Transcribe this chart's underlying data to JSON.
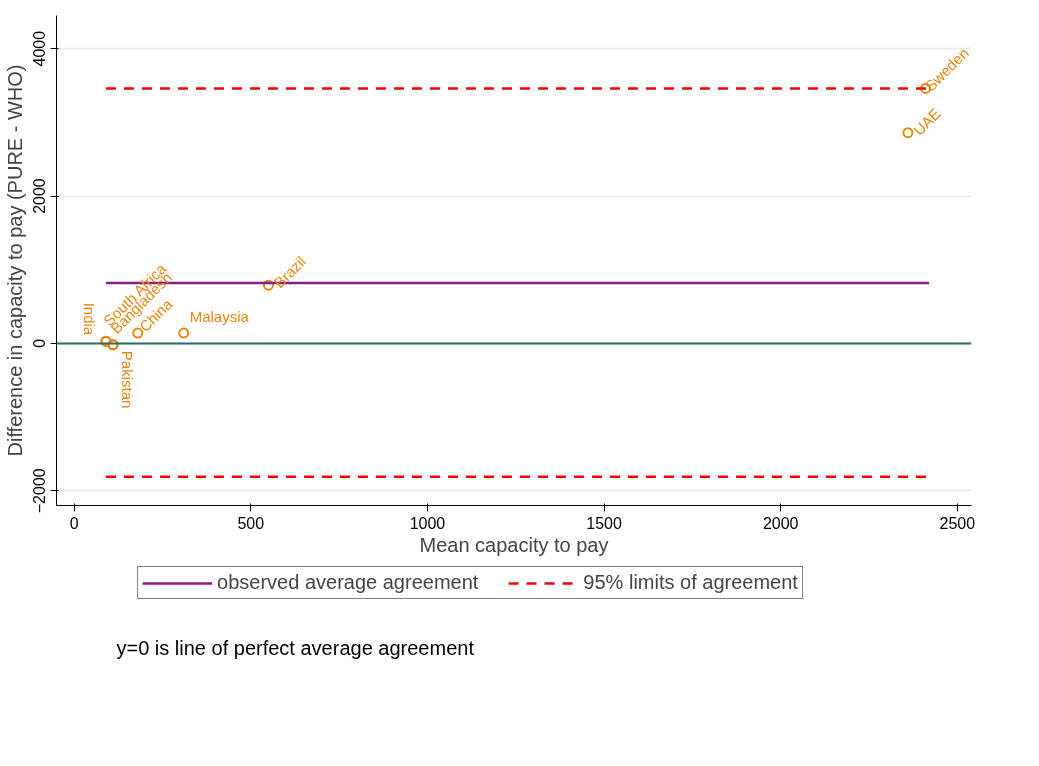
{
  "chart_data": {
    "type": "scatter",
    "xlabel": "Mean capacity to pay",
    "ylabel": "Difference in capacity to pay (PURE - WHO)",
    "xlim": [
      -50,
      2540
    ],
    "ylim": [
      -2200,
      4450
    ],
    "xticks": [
      0,
      500,
      1000,
      1500,
      2000,
      2500
    ],
    "yticks": [
      -2000,
      0,
      2000,
      4000
    ],
    "grid": "y",
    "legend": "bottom",
    "series": [
      {
        "color": "#e8860f",
        "marker": "circle",
        "x": [
          90,
          110,
          90,
          110,
          180,
          310,
          550,
          2410,
          2360
        ],
        "values": [
          30,
          -20,
          30,
          -20,
          140,
          140,
          790,
          3460,
          2860
        ]
      },
      {
        "type": "line",
        "name": "observed average agreement",
        "color": "#8b1a8b",
        "line_style": "solid",
        "x": [
          90,
          2420
        ],
        "values": [
          820,
          820
        ]
      },
      {
        "type": "line",
        "name": "95% limits of agreement",
        "color": "#ff0000",
        "line_style": "dashed",
        "x": [
          90,
          2420
        ],
        "values": [
          3460,
          3460
        ]
      },
      {
        "type": "line",
        "color": "#ff0000",
        "line_style": "dashed",
        "x": [
          90,
          2420
        ],
        "values": [
          -1810,
          -1810
        ]
      }
    ],
    "ref_lines": [
      {
        "axis": "y",
        "value": 0,
        "color": "#2e6b66"
      }
    ],
    "annotations": [
      {
        "text": "India",
        "x": 90,
        "y": 30
      },
      {
        "text": "Pakistan",
        "x": 110,
        "y": -20
      },
      {
        "text": "South Africa",
        "x": 90,
        "y": 30
      },
      {
        "text": "Bangladesh",
        "x": 110,
        "y": -20
      },
      {
        "text": "China",
        "x": 180,
        "y": 140
      },
      {
        "text": "Malaysia",
        "x": 310,
        "y": 140
      },
      {
        "text": "Brazil",
        "x": 550,
        "y": 790
      },
      {
        "text": "Sweden",
        "x": 2410,
        "y": 3460
      },
      {
        "text": "UAE",
        "x": 2360,
        "y": 2860
      },
      "y=0 is line of perfect average agreement"
    ]
  }
}
